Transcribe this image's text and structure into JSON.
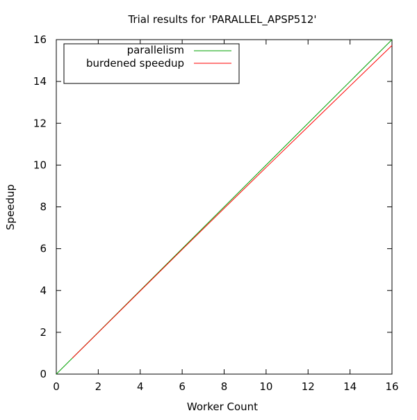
{
  "chart_data": {
    "type": "line",
    "title": "Trial results for 'PARALLEL_APSP512'",
    "xlabel": "Worker Count",
    "ylabel": "Speedup",
    "xlim": [
      0,
      16
    ],
    "ylim": [
      0,
      16
    ],
    "xticks": [
      0,
      2,
      4,
      6,
      8,
      10,
      12,
      14,
      16
    ],
    "yticks": [
      0,
      2,
      4,
      6,
      8,
      10,
      12,
      14,
      16
    ],
    "grid": false,
    "legend_position": "top-left",
    "series": [
      {
        "name": "parallelism",
        "color": "#00a000",
        "x": [
          0,
          16
        ],
        "y": [
          0,
          16
        ]
      },
      {
        "name": "burdened speedup",
        "color": "#ff0000",
        "x": [
          0.77,
          2,
          4,
          6,
          8,
          10,
          12,
          14,
          16
        ],
        "y": [
          0.77,
          1.99,
          3.98,
          5.96,
          7.93,
          9.89,
          11.84,
          13.78,
          15.72
        ]
      }
    ]
  }
}
